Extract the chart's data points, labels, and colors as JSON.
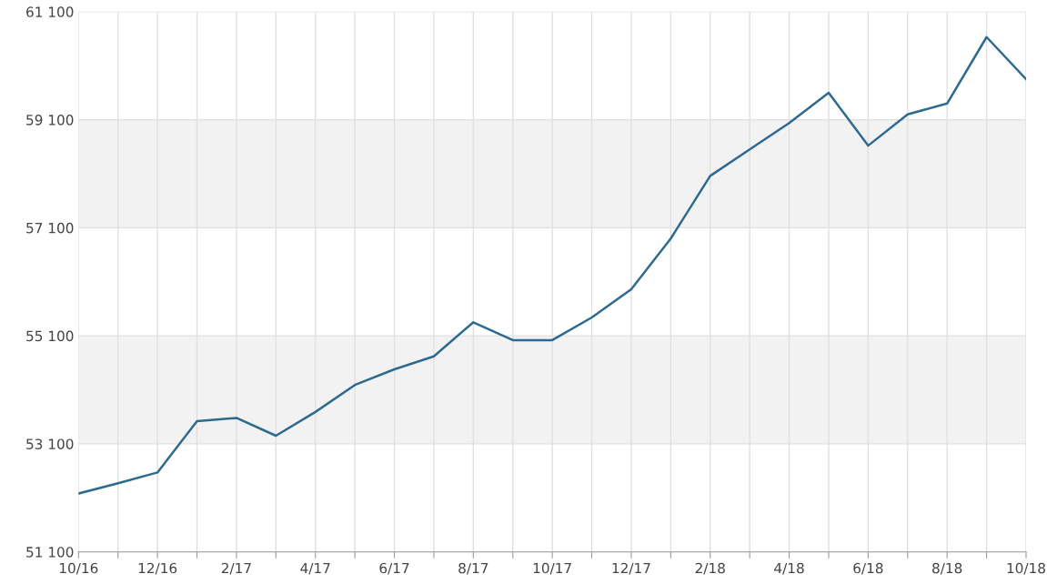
{
  "chart_data": {
    "type": "line",
    "categories": [
      "10/16",
      null,
      "12/16",
      null,
      "2/17",
      null,
      "4/17",
      null,
      "6/17",
      null,
      "8/17",
      null,
      "10/17",
      null,
      "12/17",
      null,
      "2/18",
      null,
      "4/18",
      null,
      "6/18",
      null,
      "8/18",
      null,
      "10/18"
    ],
    "series": [
      {
        "color": "#2e6a8e",
        "values": [
          52180,
          52370,
          52570,
          53520,
          53580,
          53250,
          53690,
          54190,
          54480,
          54720,
          55350,
          55020,
          55020,
          55440,
          55960,
          56900,
          58060,
          58550,
          59040,
          59600,
          58620,
          59200,
          59400,
          60630,
          59850
        ]
      }
    ],
    "ylim": [
      51100,
      61100
    ],
    "yticks": [
      {
        "value": 51100,
        "label": "51 100"
      },
      {
        "value": 53100,
        "label": "53 100"
      },
      {
        "value": 55100,
        "label": "55 100"
      },
      {
        "value": 57100,
        "label": "57 100"
      },
      {
        "value": 59100,
        "label": "59 100"
      },
      {
        "value": 61100,
        "label": "61 100"
      }
    ],
    "bands": [
      {
        "axis": "y",
        "from": 53100,
        "to": 55100,
        "color": "#f2f2f2"
      },
      {
        "axis": "y",
        "from": 57100,
        "to": 59100,
        "color": "#f2f2f2"
      }
    ],
    "grid": true,
    "marker": "none",
    "line_style": "solid",
    "legend": false
  }
}
